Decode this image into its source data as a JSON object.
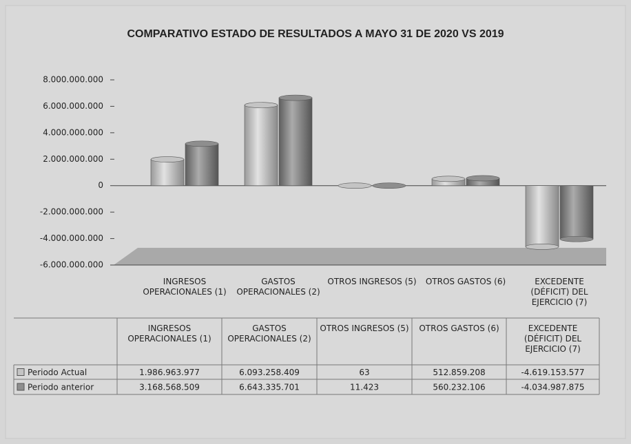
{
  "chart_data": {
    "type": "bar",
    "title": "COMPARATIVO ESTADO DE RESULTADOS A MAYO 31 DE 2020 VS 2019",
    "categories": [
      "INGRESOS OPERACIONALES (1)",
      "GASTOS OPERACIONALES (2)",
      "OTROS INGRESOS (5)",
      "OTROS GASTOS (6)",
      "EXCEDENTE (DÉFICIT) DEL EJERCICIO (7)"
    ],
    "series": [
      {
        "name": "Periodo Actual",
        "color": "#c4c4c4",
        "values": [
          1986963977,
          6093258409,
          63,
          512859208,
          -4619153577
        ],
        "value_labels": [
          "1.986.963.977",
          "6.093.258.409",
          "63",
          "512.859.208",
          "-4.619.153.577"
        ]
      },
      {
        "name": "Periodo anterior",
        "color": "#8e8e8e",
        "values": [
          3168568509,
          6643335701,
          11423,
          560232106,
          -4034987875
        ],
        "value_labels": [
          "3.168.568.509",
          "6.643.335.701",
          "11.423",
          "560.232.106",
          "-4.034.987.875"
        ]
      }
    ],
    "ylim": [
      -6000000000,
      8000000000
    ],
    "yticks": [
      {
        "value": 8000000000,
        "label": "8.000.000.000"
      },
      {
        "value": 6000000000,
        "label": "6.000.000.000"
      },
      {
        "value": 4000000000,
        "label": "4.000.000.000"
      },
      {
        "value": 2000000000,
        "label": "2.000.000.000"
      },
      0,
      {
        "value": -2000000000,
        "label": "-2.000.000.000"
      },
      {
        "value": -4000000000,
        "label": "-4.000.000.000"
      },
      {
        "value": -6000000000,
        "label": "-6.000.000.000"
      }
    ],
    "grid": false
  }
}
